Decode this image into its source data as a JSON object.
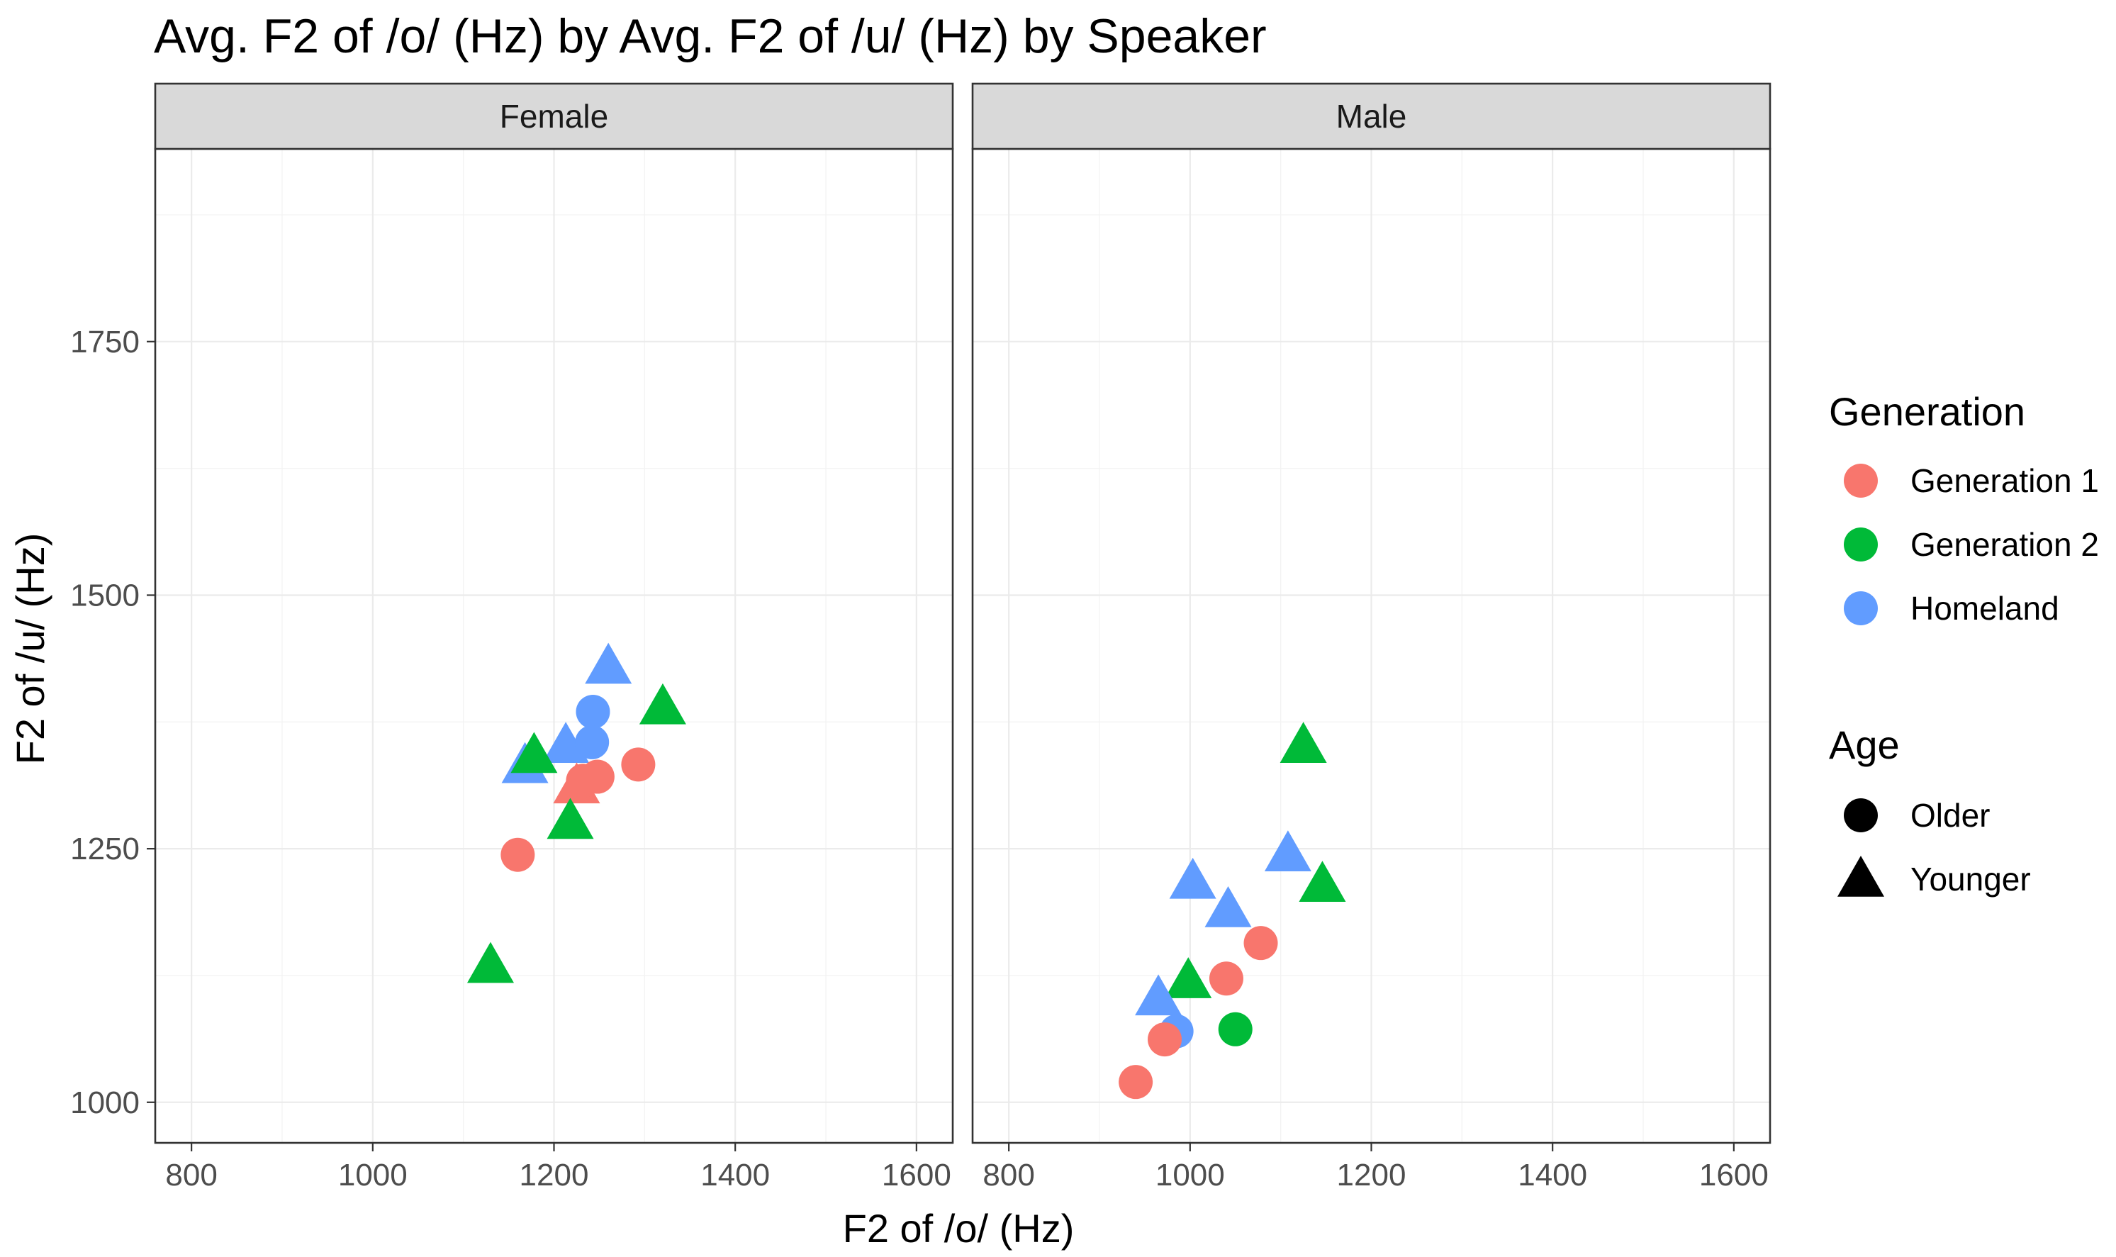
{
  "chart_data": {
    "type": "scatter",
    "title": "Avg. F2 of /o/ (Hz) by Avg. F2 of /u/ (Hz) by Speaker",
    "xlabel": "F2 of /o/ (Hz)",
    "ylabel": "F2 of /u/ (Hz)",
    "xlim": [
      760,
      1640
    ],
    "ylim": [
      960,
      1940
    ],
    "x_ticks": [
      800,
      1000,
      1200,
      1400,
      1600
    ],
    "x_minor": [
      900,
      1100,
      1300,
      1500
    ],
    "y_ticks": [
      1000,
      1250,
      1500,
      1750
    ],
    "y_minor": [
      1125,
      1375,
      1625,
      1875
    ],
    "grid": true,
    "legend_position": "right",
    "facets": [
      "Female",
      "Male"
    ],
    "legend": {
      "generation": {
        "title": "Generation",
        "entries": [
          {
            "label": "Generation 1",
            "color": "#F8766D"
          },
          {
            "label": "Generation 2",
            "color": "#00BA38"
          },
          {
            "label": "Homeland",
            "color": "#619CFF"
          }
        ]
      },
      "age": {
        "title": "Age",
        "entries": [
          {
            "label": "Older",
            "shape": "circle"
          },
          {
            "label": "Younger",
            "shape": "triangle"
          }
        ]
      }
    },
    "points": [
      {
        "facet": "Female",
        "generation": "Homeland",
        "age": "Younger",
        "x": 1260,
        "y": 1430
      },
      {
        "facet": "Female",
        "generation": "Homeland",
        "age": "Older",
        "x": 1243,
        "y": 1385
      },
      {
        "facet": "Female",
        "generation": "Homeland",
        "age": "Younger",
        "x": 1213,
        "y": 1352
      },
      {
        "facet": "Female",
        "generation": "Homeland",
        "age": "Older",
        "x": 1242,
        "y": 1355
      },
      {
        "facet": "Female",
        "generation": "Homeland",
        "age": "Younger",
        "x": 1168,
        "y": 1332
      },
      {
        "facet": "Female",
        "generation": "Generation 1",
        "age": "Younger",
        "x": 1225,
        "y": 1312
      },
      {
        "facet": "Female",
        "generation": "Generation 1",
        "age": "Older",
        "x": 1232,
        "y": 1317
      },
      {
        "facet": "Female",
        "generation": "Generation 1",
        "age": "Older",
        "x": 1248,
        "y": 1321
      },
      {
        "facet": "Female",
        "generation": "Generation 1",
        "age": "Older",
        "x": 1293,
        "y": 1333
      },
      {
        "facet": "Female",
        "generation": "Generation 1",
        "age": "Older",
        "x": 1160,
        "y": 1244
      },
      {
        "facet": "Female",
        "generation": "Generation 2",
        "age": "Younger",
        "x": 1320,
        "y": 1390
      },
      {
        "facet": "Female",
        "generation": "Generation 2",
        "age": "Younger",
        "x": 1178,
        "y": 1342
      },
      {
        "facet": "Female",
        "generation": "Generation 2",
        "age": "Younger",
        "x": 1218,
        "y": 1277
      },
      {
        "facet": "Female",
        "generation": "Generation 2",
        "age": "Younger",
        "x": 1130,
        "y": 1135
      },
      {
        "facet": "Male",
        "generation": "Generation 2",
        "age": "Younger",
        "x": 1125,
        "y": 1352
      },
      {
        "facet": "Male",
        "generation": "Homeland",
        "age": "Younger",
        "x": 1108,
        "y": 1245
      },
      {
        "facet": "Male",
        "generation": "Generation 2",
        "age": "Younger",
        "x": 1146,
        "y": 1215
      },
      {
        "facet": "Male",
        "generation": "Homeland",
        "age": "Younger",
        "x": 1003,
        "y": 1218
      },
      {
        "facet": "Male",
        "generation": "Homeland",
        "age": "Younger",
        "x": 1042,
        "y": 1190
      },
      {
        "facet": "Male",
        "generation": "Generation 1",
        "age": "Older",
        "x": 1078,
        "y": 1157
      },
      {
        "facet": "Male",
        "generation": "Generation 1",
        "age": "Older",
        "x": 1040,
        "y": 1122
      },
      {
        "facet": "Male",
        "generation": "Generation 2",
        "age": "Younger",
        "x": 998,
        "y": 1120
      },
      {
        "facet": "Male",
        "generation": "Homeland",
        "age": "Younger",
        "x": 965,
        "y": 1103
      },
      {
        "facet": "Male",
        "generation": "Homeland",
        "age": "Older",
        "x": 985,
        "y": 1070
      },
      {
        "facet": "Male",
        "generation": "Generation 2",
        "age": "Older",
        "x": 1050,
        "y": 1072
      },
      {
        "facet": "Male",
        "generation": "Generation 1",
        "age": "Older",
        "x": 972,
        "y": 1062
      },
      {
        "facet": "Male",
        "generation": "Generation 1",
        "age": "Older",
        "x": 940,
        "y": 1020
      }
    ]
  }
}
